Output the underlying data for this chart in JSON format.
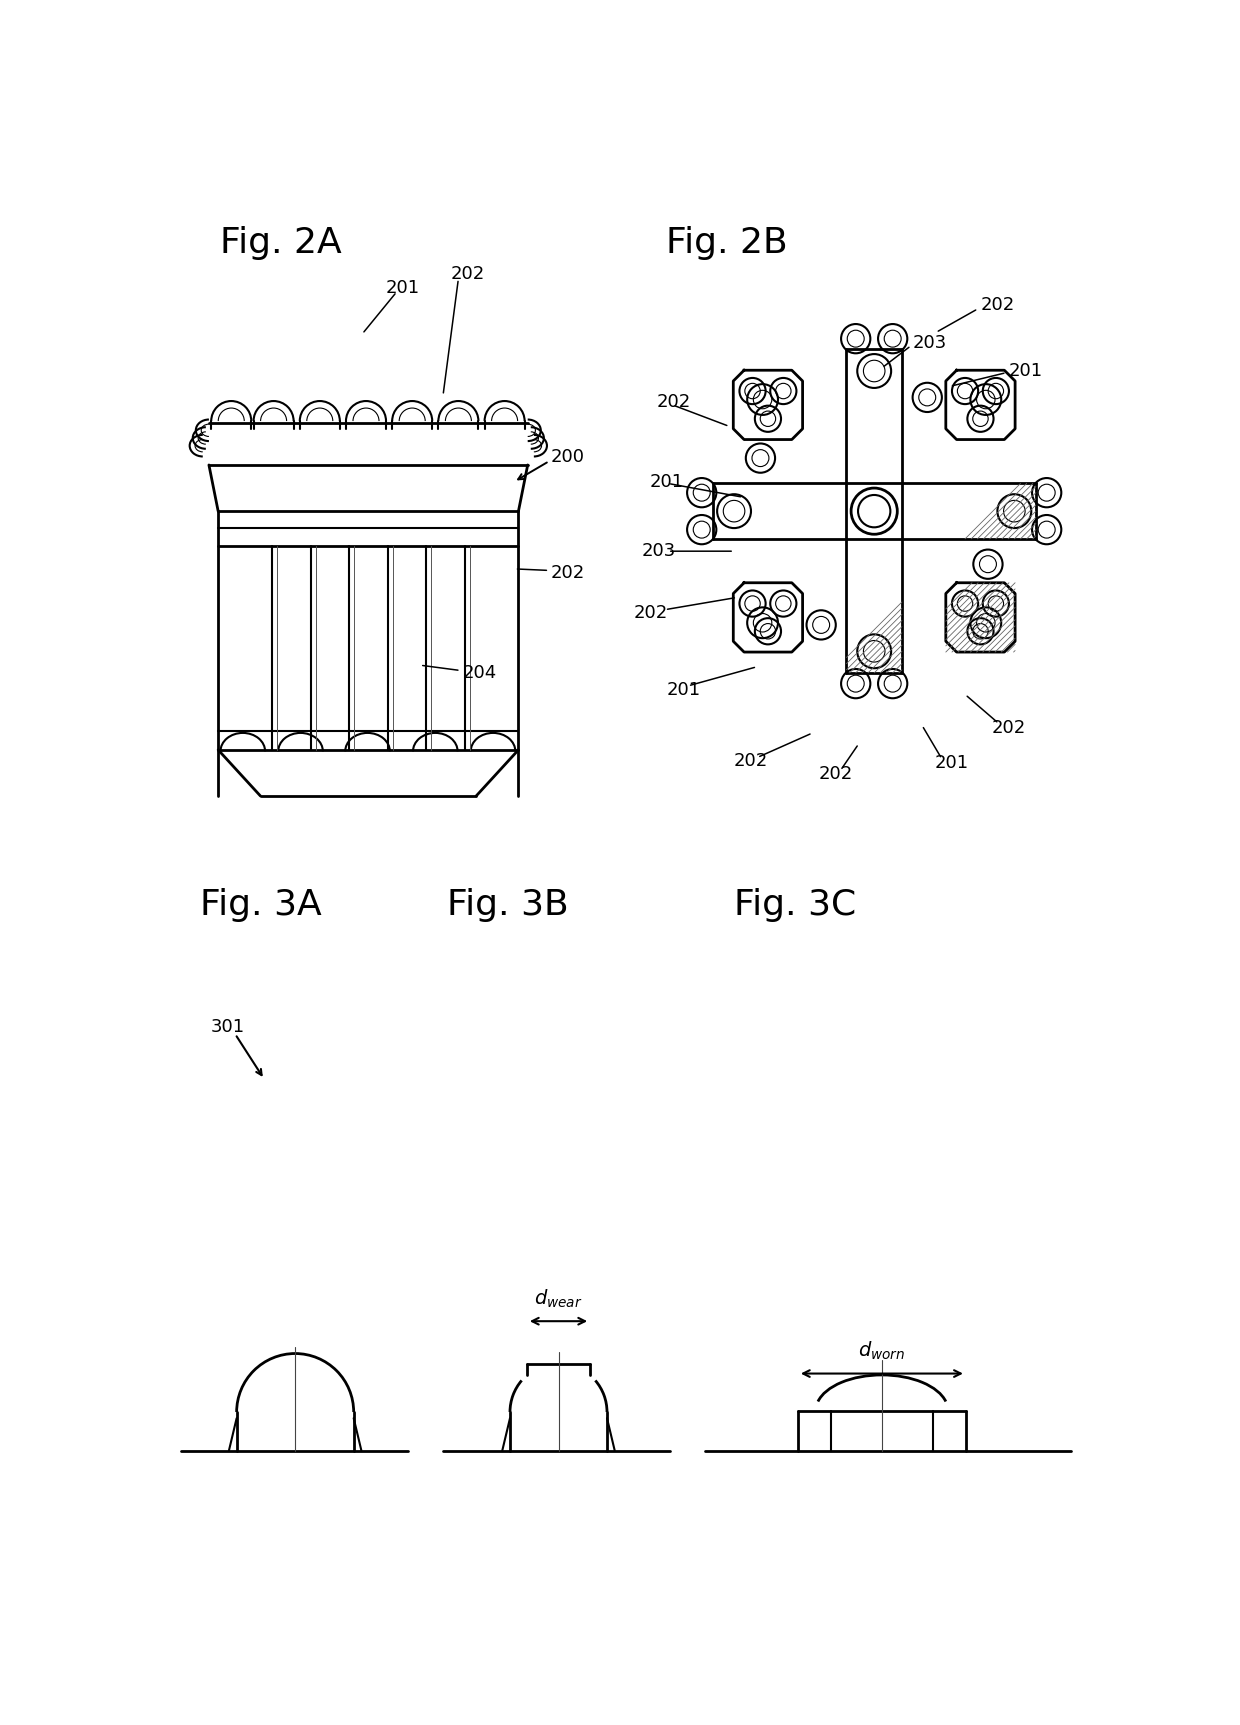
{
  "fig_labels": {
    "fig2a": "Fig. 2A",
    "fig2b": "Fig. 2B",
    "fig3a": "Fig. 3A",
    "fig3b": "Fig. 3B",
    "fig3c": "Fig. 3C"
  },
  "bg_color": "#ffffff",
  "line_color": "#000000",
  "lw": 1.5,
  "lw_thick": 2.0
}
